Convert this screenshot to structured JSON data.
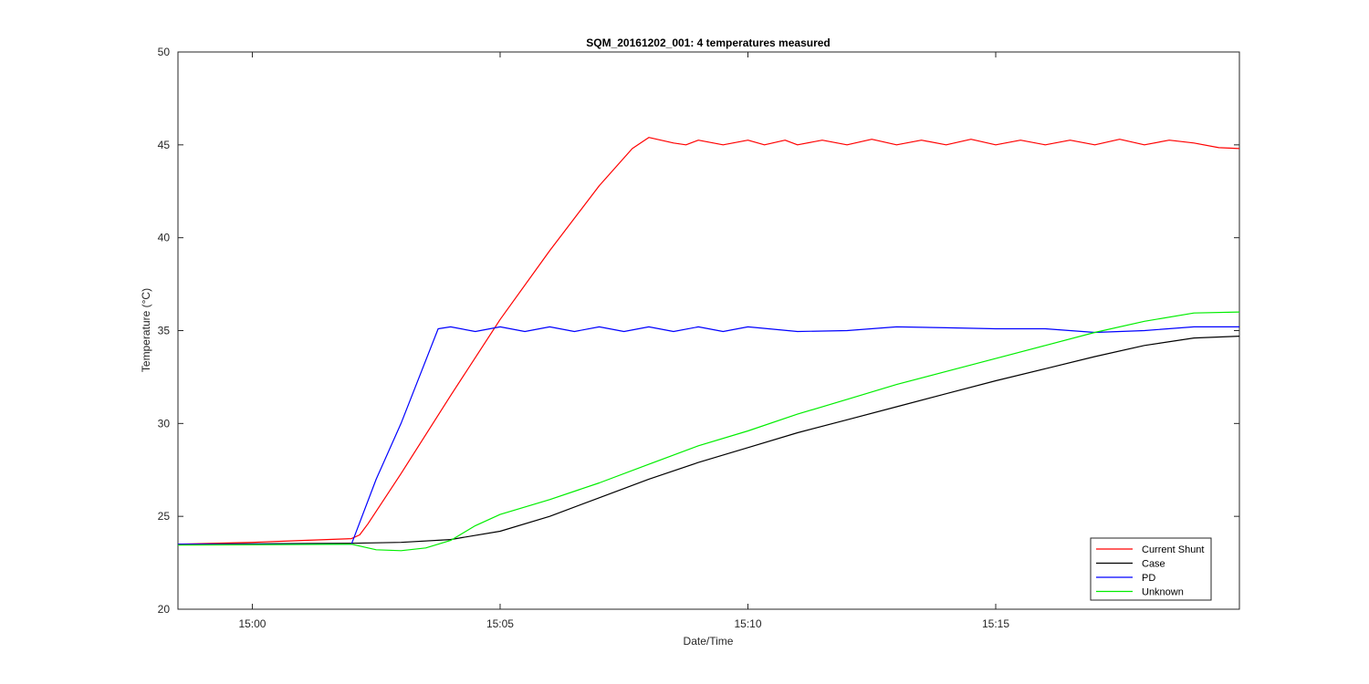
{
  "chart_data": {
    "type": "line",
    "title": "SQM_20161202_001: 4 temperatures measured",
    "xlabel": "Date/Time",
    "ylabel": "Temperature (°C)",
    "x_unit": "minutes since 15:00 (time axis)",
    "xlim": [
      "14:58:30",
      "15:19:55"
    ],
    "ylim": [
      20,
      50
    ],
    "x_ticks": [
      "15:00",
      "15:05",
      "15:10",
      "15:15"
    ],
    "y_ticks": [
      "20",
      "25",
      "30",
      "35",
      "40",
      "45",
      "50"
    ],
    "grid": false,
    "legend_position": "bottom-right",
    "series": [
      {
        "name": "Current Shunt",
        "color": "#ff0000",
        "points": [
          [
            "14:58:30",
            23.5
          ],
          [
            "15:00",
            23.6
          ],
          [
            "15:01",
            23.7
          ],
          [
            "15:02",
            23.8
          ],
          [
            "15:02:10",
            24.0
          ],
          [
            "15:02:20",
            24.6
          ],
          [
            "15:03",
            27.3
          ],
          [
            "15:04",
            31.5
          ],
          [
            "15:05",
            35.6
          ],
          [
            "15:06",
            39.3
          ],
          [
            "15:07",
            42.8
          ],
          [
            "15:07:40",
            44.8
          ],
          [
            "15:08",
            45.4
          ],
          [
            "15:08:30",
            45.1
          ],
          [
            "15:08:45",
            45.0
          ],
          [
            "15:09",
            45.25
          ],
          [
            "15:09:30",
            45.0
          ],
          [
            "15:10",
            45.25
          ],
          [
            "15:10:20",
            45.0
          ],
          [
            "15:10:45",
            45.25
          ],
          [
            "15:11",
            45.0
          ],
          [
            "15:11:30",
            45.25
          ],
          [
            "15:12",
            45.0
          ],
          [
            "15:12:30",
            45.3
          ],
          [
            "15:13",
            45.0
          ],
          [
            "15:13:30",
            45.25
          ],
          [
            "15:14",
            45.0
          ],
          [
            "15:14:30",
            45.3
          ],
          [
            "15:15",
            45.0
          ],
          [
            "15:15:30",
            45.25
          ],
          [
            "15:16",
            45.0
          ],
          [
            "15:16:30",
            45.25
          ],
          [
            "15:17",
            45.0
          ],
          [
            "15:17:30",
            45.3
          ],
          [
            "15:18",
            45.0
          ],
          [
            "15:18:30",
            45.25
          ],
          [
            "15:19",
            45.1
          ],
          [
            "15:19:30",
            44.85
          ],
          [
            "15:19:55",
            44.8
          ]
        ]
      },
      {
        "name": "Case",
        "color": "#000000",
        "points": [
          [
            "14:58:30",
            23.5
          ],
          [
            "15:02",
            23.55
          ],
          [
            "15:03",
            23.6
          ],
          [
            "15:04",
            23.75
          ],
          [
            "15:05",
            24.2
          ],
          [
            "15:06",
            25.0
          ],
          [
            "15:07",
            26.0
          ],
          [
            "15:08",
            27.0
          ],
          [
            "15:09",
            27.9
          ],
          [
            "15:10",
            28.7
          ],
          [
            "15:11",
            29.5
          ],
          [
            "15:12",
            30.2
          ],
          [
            "15:13",
            30.9
          ],
          [
            "15:14",
            31.6
          ],
          [
            "15:15",
            32.3
          ],
          [
            "15:16",
            32.95
          ],
          [
            "15:17",
            33.6
          ],
          [
            "15:18",
            34.2
          ],
          [
            "15:19",
            34.6
          ],
          [
            "15:19:55",
            34.7
          ]
        ]
      },
      {
        "name": "PD",
        "color": "#0000ff",
        "points": [
          [
            "14:58:30",
            23.5
          ],
          [
            "15:02",
            23.5
          ],
          [
            "15:02:30",
            27.0
          ],
          [
            "15:03",
            30.0
          ],
          [
            "15:03:45",
            35.1
          ],
          [
            "15:04",
            35.2
          ],
          [
            "15:04:30",
            34.95
          ],
          [
            "15:05",
            35.2
          ],
          [
            "15:05:30",
            34.95
          ],
          [
            "15:06",
            35.2
          ],
          [
            "15:06:30",
            34.95
          ],
          [
            "15:07",
            35.2
          ],
          [
            "15:07:30",
            34.95
          ],
          [
            "15:08",
            35.2
          ],
          [
            "15:08:30",
            34.95
          ],
          [
            "15:09",
            35.2
          ],
          [
            "15:09:30",
            34.95
          ],
          [
            "15:10",
            35.2
          ],
          [
            "15:11",
            34.95
          ],
          [
            "15:12",
            35.0
          ],
          [
            "15:13",
            35.2
          ],
          [
            "15:14",
            35.15
          ],
          [
            "15:15",
            35.1
          ],
          [
            "15:16",
            35.1
          ],
          [
            "15:17",
            34.9
          ],
          [
            "15:18",
            35.0
          ],
          [
            "15:19",
            35.2
          ],
          [
            "15:19:55",
            35.2
          ]
        ]
      },
      {
        "name": "Unknown",
        "color": "#00ee00",
        "points": [
          [
            "14:58:30",
            23.45
          ],
          [
            "15:02",
            23.5
          ],
          [
            "15:02:30",
            23.2
          ],
          [
            "15:03",
            23.15
          ],
          [
            "15:03:30",
            23.3
          ],
          [
            "15:04",
            23.7
          ],
          [
            "15:04:30",
            24.5
          ],
          [
            "15:05",
            25.1
          ],
          [
            "15:06",
            25.9
          ],
          [
            "15:07",
            26.8
          ],
          [
            "15:08",
            27.8
          ],
          [
            "15:09",
            28.8
          ],
          [
            "15:10",
            29.6
          ],
          [
            "15:11",
            30.5
          ],
          [
            "15:12",
            31.3
          ],
          [
            "15:13",
            32.1
          ],
          [
            "15:14",
            32.8
          ],
          [
            "15:15",
            33.5
          ],
          [
            "15:16",
            34.2
          ],
          [
            "15:17",
            34.9
          ],
          [
            "15:18",
            35.5
          ],
          [
            "15:19",
            35.95
          ],
          [
            "15:19:55",
            36.0
          ]
        ]
      }
    ]
  }
}
